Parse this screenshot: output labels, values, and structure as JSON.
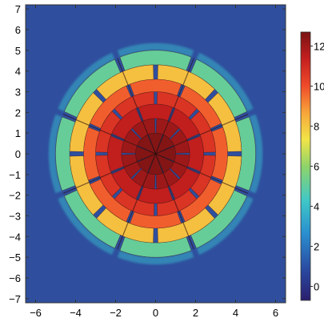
{
  "chart_data": {
    "type": "heatmap",
    "title": "",
    "xlabel": "",
    "ylabel": "",
    "xlim": [
      -6.5,
      6.5
    ],
    "ylim": [
      -7.2,
      7.2
    ],
    "x_ticks": [
      -6,
      -4,
      -2,
      0,
      2,
      4,
      6
    ],
    "y_ticks": [
      7,
      6,
      5,
      4,
      3,
      2,
      1,
      0,
      -1,
      -2,
      -3,
      -4,
      -5,
      -6,
      -7
    ],
    "colorbar": {
      "ticks": [
        12,
        10,
        8,
        6,
        4,
        2,
        0
      ],
      "range": [
        -0.7,
        12.7
      ],
      "colormap": [
        "#2b1f6e",
        "#2a4ca3",
        "#2a8fcf",
        "#3fc7c7",
        "#8fd46a",
        "#f2e447",
        "#f7a53a",
        "#ef4b2a",
        "#c51f1f",
        "#7a1414"
      ]
    },
    "background_value": 1.8,
    "sectors": 8,
    "rings": [
      {
        "r_inner": 0.0,
        "r_outer": 1.0,
        "value": 12.5
      },
      {
        "r_inner": 1.0,
        "r_outer": 1.7,
        "value": 12.0
      },
      {
        "r_inner": 1.7,
        "r_outer": 2.4,
        "value": 11.3
      },
      {
        "r_inner": 2.4,
        "r_outer": 3.0,
        "value": 10.5
      },
      {
        "r_inner": 3.0,
        "r_outer": 3.6,
        "value": 9.4
      },
      {
        "r_inner": 3.6,
        "r_outer": 4.3,
        "value": 7.6
      },
      {
        "r_inner": 4.3,
        "r_outer": 5.0,
        "value": 4.5
      }
    ],
    "gap_angles_deg": [
      0,
      45,
      90,
      135,
      180,
      225,
      270,
      315
    ]
  }
}
